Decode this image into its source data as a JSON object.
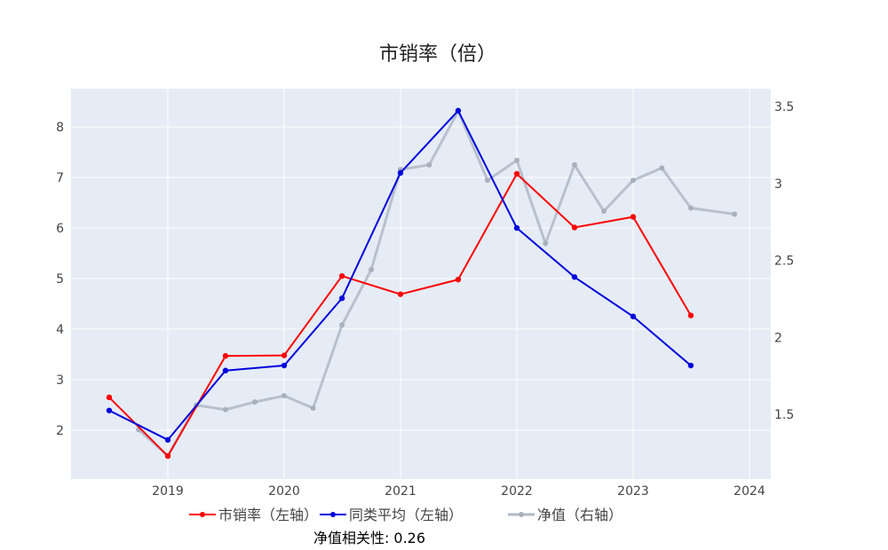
{
  "chart_data": {
    "type": "line",
    "title": "市销率（倍）",
    "x_ticks": [
      "2019",
      "2020",
      "2021",
      "2022",
      "2023",
      "2024"
    ],
    "y_left": {
      "ticks": [
        2,
        3,
        4,
        5,
        6,
        7,
        8
      ],
      "range": [
        1.1,
        8.8
      ]
    },
    "y_right": {
      "ticks": [
        "1.5",
        "2",
        "2.5",
        "3",
        "3.5"
      ],
      "range": [
        1.12,
        3.65
      ]
    },
    "grid": true,
    "legend_placement": "bottom",
    "series": [
      {
        "name": "市销率（左轴）",
        "axis": "left",
        "color": "#ff0000",
        "x": [
          "2018-07-01",
          "2019-01-01",
          "2019-07-01",
          "2020-01-01",
          "2020-07-01",
          "2021-01-01",
          "2021-07-01",
          "2022-01-01",
          "2022-07-01",
          "2023-01-01",
          "2023-07-01"
        ],
        "y": [
          2.65,
          1.49,
          3.47,
          3.48,
          5.05,
          4.69,
          4.98,
          7.07,
          6.01,
          6.22,
          4.27
        ]
      },
      {
        "name": "同类平均（左轴）",
        "axis": "left",
        "color": "#0000dd",
        "x": [
          "2018-07-01",
          "2019-01-01",
          "2019-07-01",
          "2020-01-01",
          "2020-07-01",
          "2021-01-01",
          "2021-07-01",
          "2022-01-01",
          "2022-07-01",
          "2023-01-01",
          "2023-07-01"
        ],
        "y": [
          2.39,
          1.81,
          3.18,
          3.28,
          4.61,
          7.09,
          8.32,
          6.0,
          5.03,
          4.25,
          3.28
        ]
      },
      {
        "name": "净值（右轴）",
        "axis": "right",
        "color": "#b0b8c6",
        "x": [
          "2018-10-01",
          "2019-01-01",
          "2019-04-01",
          "2019-07-01",
          "2019-10-01",
          "2020-01-01",
          "2020-04-01",
          "2020-07-01",
          "2020-10-01",
          "2021-01-01",
          "2021-04-01",
          "2021-07-01",
          "2021-10-01",
          "2022-01-01",
          "2022-04-01",
          "2022-07-01",
          "2022-10-01",
          "2023-01-01",
          "2023-04-01",
          "2023-07-01",
          "2023-11-15"
        ],
        "y": [
          1.4,
          1.23,
          1.56,
          1.53,
          1.58,
          1.62,
          1.54,
          2.08,
          2.44,
          3.09,
          3.12,
          3.47,
          3.02,
          3.15,
          2.61,
          3.12,
          2.82,
          3.02,
          3.1,
          2.84,
          2.8
        ]
      }
    ],
    "annotation": "净值相关性: 0.26"
  },
  "colors": {
    "plot_bg": "#e5ecf6",
    "grid": "#ffffff",
    "axis_text": "#444444"
  }
}
